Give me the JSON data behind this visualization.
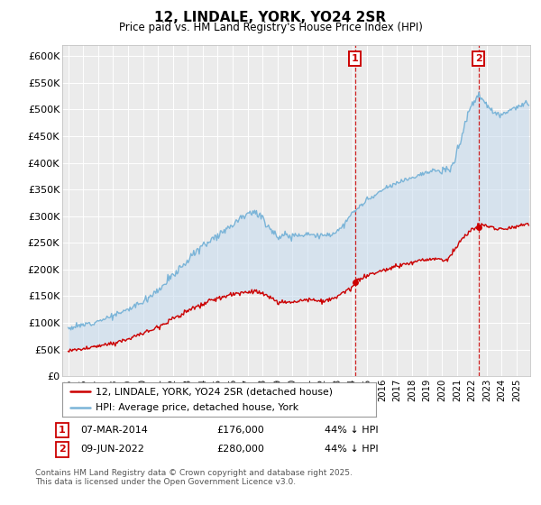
{
  "title": "12, LINDALE, YORK, YO24 2SR",
  "subtitle": "Price paid vs. HM Land Registry's House Price Index (HPI)",
  "ylim": [
    0,
    620000
  ],
  "yticks": [
    0,
    50000,
    100000,
    150000,
    200000,
    250000,
    300000,
    350000,
    400000,
    450000,
    500000,
    550000,
    600000
  ],
  "hpi_color": "#7ab4d8",
  "price_color": "#cc0000",
  "transaction1": {
    "label": "1",
    "date": "07-MAR-2014",
    "price": "£176,000",
    "note": "44% ↓ HPI"
  },
  "transaction2": {
    "label": "2",
    "date": "09-JUN-2022",
    "price": "£280,000",
    "note": "44% ↓ HPI"
  },
  "legend_line1": "12, LINDALE, YORK, YO24 2SR (detached house)",
  "legend_line2": "HPI: Average price, detached house, York",
  "footnote": "Contains HM Land Registry data © Crown copyright and database right 2025.\nThis data is licensed under the Open Government Licence v3.0.",
  "background_color": "#ffffff",
  "plot_bg_color": "#ebebeb",
  "grid_color": "#ffffff",
  "vline_color": "#cc0000",
  "shade_color": "#c6dbef",
  "shade_alpha": 0.55,
  "t1_x": 2014.18,
  "t2_x": 2022.44,
  "t1_price": 176000,
  "t2_price": 280000,
  "x_min": 1994.6,
  "x_max": 2025.9
}
